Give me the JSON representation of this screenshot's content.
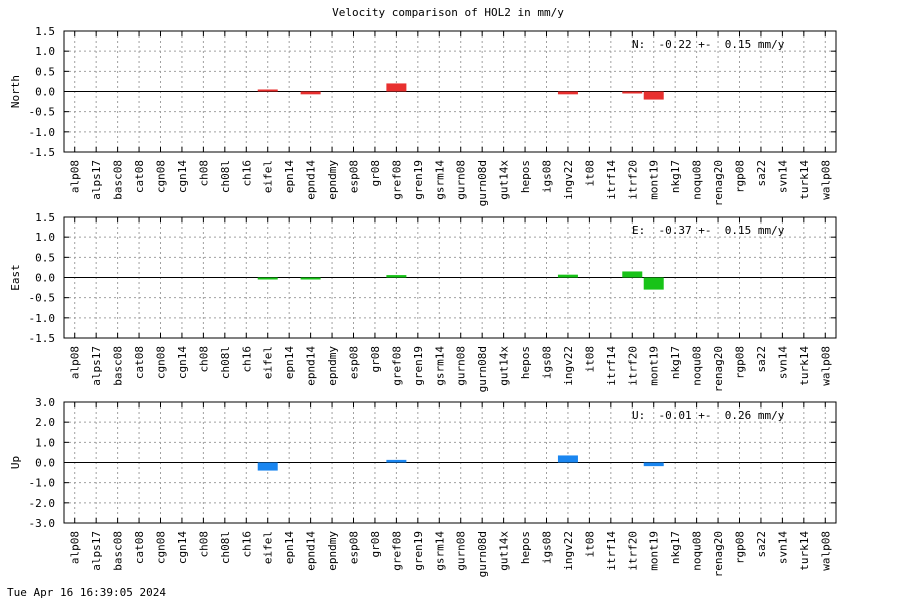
{
  "chart_data": {
    "type": "bar",
    "title": "Velocity comparison of HOL2 in mm/y",
    "categories": [
      "alp08",
      "alps17",
      "basc08",
      "cat08",
      "cgn08",
      "cgn14",
      "ch08",
      "ch08l",
      "ch16",
      "eifel",
      "epn14",
      "epnd14",
      "epndmy",
      "esp08",
      "gr08",
      "gref08",
      "gren19",
      "gsrm14",
      "gurn08",
      "gurn08d",
      "gut14x",
      "hepos",
      "igs08",
      "ingv22",
      "it08",
      "itrf14",
      "itrf20",
      "mont19",
      "nkg17",
      "noqu08",
      "renag20",
      "rgp08",
      "sa22",
      "svn14",
      "turk14",
      "walp08"
    ],
    "panels": [
      {
        "ylabel": "North",
        "ylim": [
          -1.5,
          1.5
        ],
        "yticks": [
          "1.5",
          "1.0",
          "0.5",
          "0.0",
          "-0.5",
          "-1.0",
          "-1.5"
        ],
        "color": "#e8302f",
        "annotation": "N:  -0.22 +-  0.15 mm/y",
        "values": [
          null,
          null,
          null,
          null,
          null,
          null,
          null,
          null,
          null,
          0.05,
          null,
          -0.07,
          null,
          null,
          null,
          0.2,
          null,
          null,
          null,
          null,
          null,
          null,
          null,
          -0.07,
          null,
          null,
          -0.03,
          -0.2,
          null,
          null,
          null,
          null,
          null,
          null,
          null,
          null
        ]
      },
      {
        "ylabel": "East",
        "ylim": [
          -1.5,
          1.5
        ],
        "yticks": [
          "1.5",
          "1.0",
          "0.5",
          "0.0",
          "-0.5",
          "-1.0",
          "-1.5"
        ],
        "color": "#18c318",
        "annotation": "E:  -0.37 +-  0.15 mm/y",
        "values": [
          null,
          null,
          null,
          null,
          null,
          null,
          null,
          null,
          null,
          -0.03,
          null,
          -0.03,
          null,
          null,
          null,
          0.06,
          null,
          null,
          null,
          null,
          null,
          null,
          null,
          0.07,
          null,
          null,
          0.15,
          -0.3,
          null,
          null,
          null,
          null,
          null,
          null,
          null,
          null
        ]
      },
      {
        "ylabel": "Up",
        "ylim": [
          -3.0,
          3.0
        ],
        "yticks": [
          "3.0",
          "2.0",
          "1.0",
          "0.0",
          "-1.0",
          "-2.0",
          "-3.0"
        ],
        "color": "#1a86f0",
        "annotation": "U:  -0.01 +-  0.26 mm/y",
        "values": [
          null,
          null,
          null,
          null,
          null,
          null,
          null,
          null,
          null,
          -0.4,
          null,
          null,
          null,
          null,
          null,
          0.13,
          null,
          null,
          null,
          null,
          null,
          null,
          null,
          0.35,
          null,
          null,
          null,
          -0.18,
          null,
          null,
          null,
          null,
          null,
          null,
          null,
          null
        ]
      }
    ],
    "grid": true
  },
  "footer": "Tue Apr 16 16:39:05 2024"
}
